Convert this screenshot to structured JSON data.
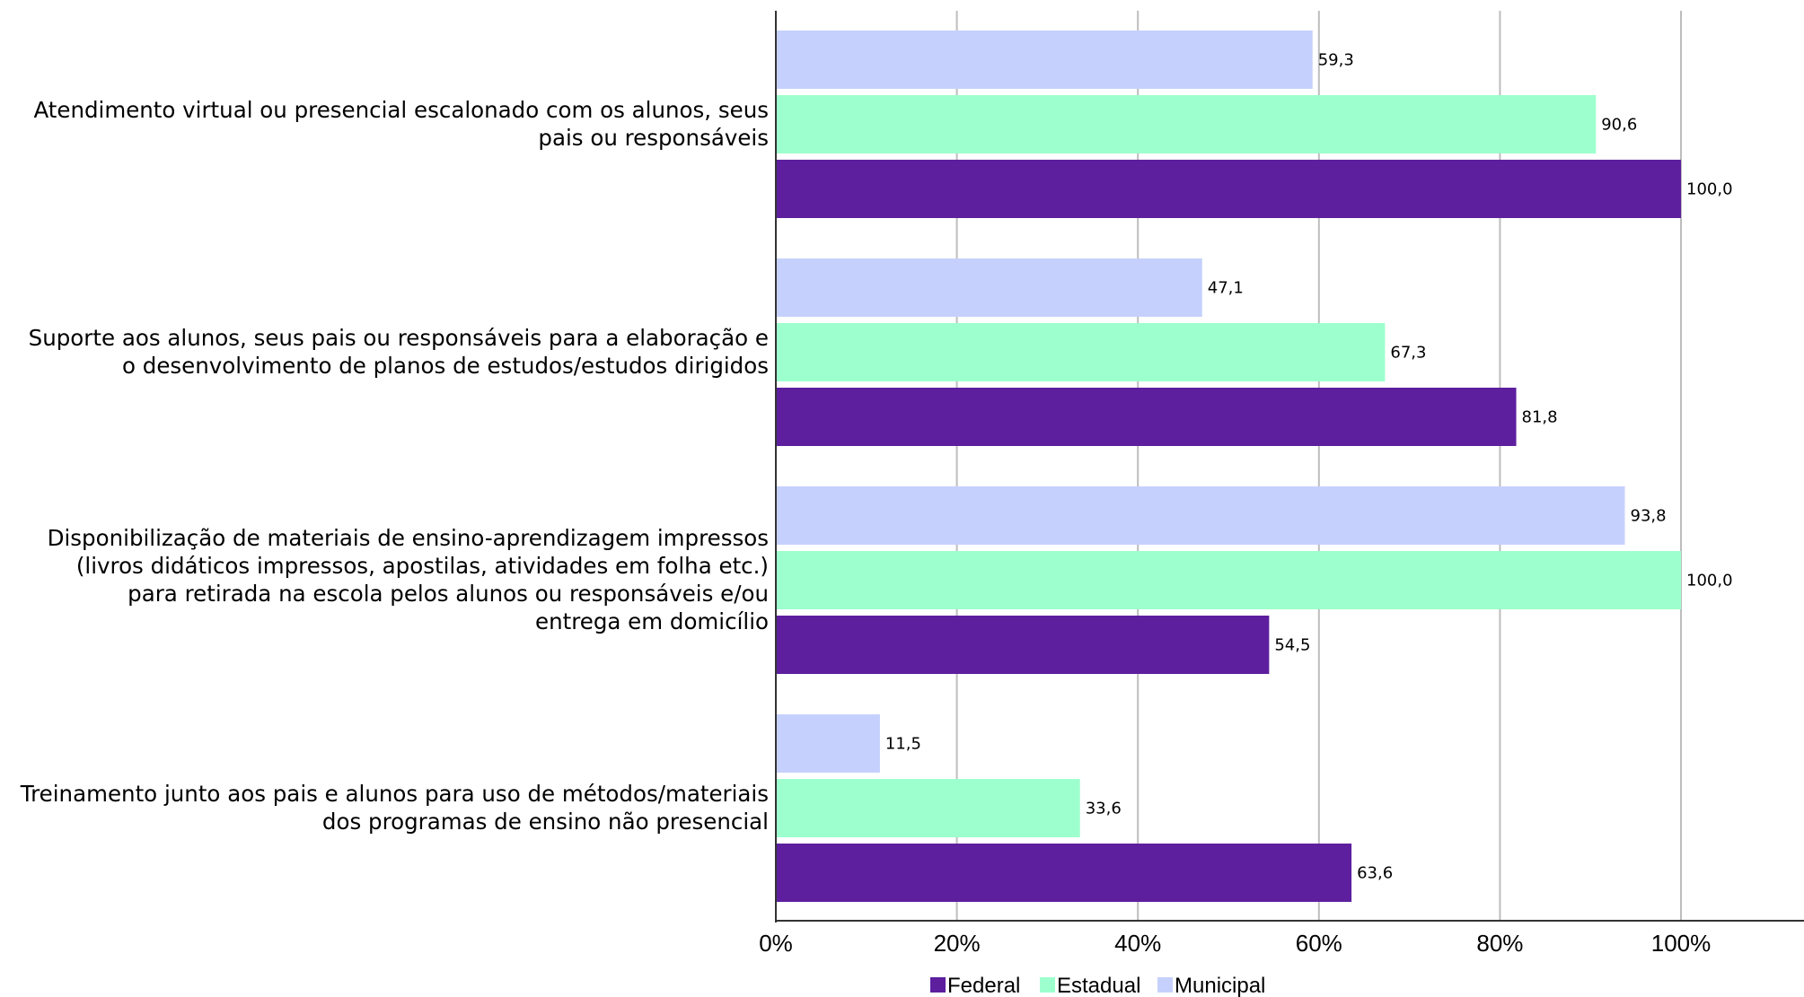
{
  "chart_data": {
    "type": "bar",
    "orientation": "horizontal",
    "categories": [
      [
        "Atendimento virtual ou presencial escalonado com os alunos, seus",
        "pais ou responsáveis"
      ],
      [
        "Suporte aos alunos, seus pais ou responsáveis para a elaboração e",
        "o desenvolvimento de planos de estudos/estudos dirigidos"
      ],
      [
        "Disponibilização de materiais de ensino-aprendizagem impressos",
        "(livros didáticos impressos, apostilas, atividades em folha etc.)",
        "para retirada na escola pelos alunos ou responsáveis e/ou",
        "entrega em domicílio"
      ],
      [
        "Treinamento junto aos pais e alunos para uso de métodos/materiais",
        "dos programas de ensino não presencial"
      ]
    ],
    "series": [
      {
        "name": "Municipal",
        "color": "#c5d1fc",
        "values": [
          59.3,
          47.1,
          93.8,
          11.5
        ],
        "labels": [
          "59,3",
          "47,1",
          "93,8",
          "11,5"
        ]
      },
      {
        "name": "Estadual",
        "color": "#9dffcd",
        "values": [
          90.6,
          67.3,
          100.0,
          33.6
        ],
        "labels": [
          "90,6",
          "67,3",
          "100,0",
          "33,6"
        ]
      },
      {
        "name": "Federal",
        "color": "#5d1f9e",
        "values": [
          100.0,
          81.8,
          54.5,
          63.6
        ],
        "labels": [
          "100,0",
          "81,8",
          "54,5",
          "63,6"
        ]
      }
    ],
    "xticks": [
      "0%",
      "20%",
      "40%",
      "60%",
      "80%",
      "100%"
    ],
    "xlim": [
      0,
      113
    ],
    "grid": true,
    "legend": {
      "position": "bottom",
      "order": [
        "Federal",
        "Estadual",
        "Municipal"
      ]
    }
  }
}
